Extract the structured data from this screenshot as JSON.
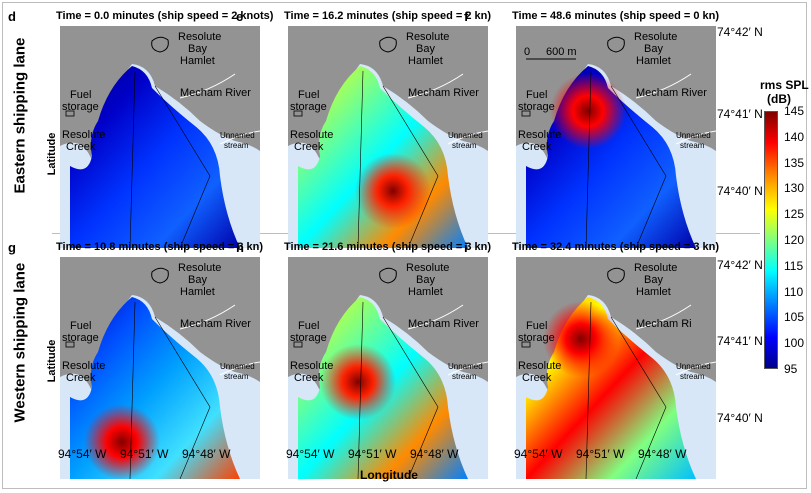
{
  "row_labels": [
    "Eastern shipping lane",
    "Western shipping lane"
  ],
  "ylabel": "Latitude",
  "xlabel": "Longitude",
  "lat_ticks": [
    "74°42′ N",
    "74°41′ N",
    "74°40′ N"
  ],
  "lon_ticks": [
    "94°54′ W",
    "94°51′ W",
    "94°48′ W"
  ],
  "colorbar": {
    "title_line1": "rms SPL",
    "title_line2": "(dB)",
    "ticks": [
      "145",
      "140",
      "135",
      "130",
      "125",
      "120",
      "115",
      "110",
      "105",
      "100",
      "95"
    ],
    "range": [
      95,
      145
    ],
    "colors": [
      "#00008b",
      "#0000ff",
      "#0080ff",
      "#00ffff",
      "#80ff80",
      "#ffff00",
      "#ff8a00",
      "#ff0000",
      "#800000"
    ]
  },
  "place_names": {
    "resolute_bay_1": "Resolute",
    "resolute_bay_2": "Bay",
    "resolute_bay_3": "Hamlet",
    "mecham_river": "Mecham River",
    "mecham_river_truncated": "Mecham Ri",
    "fuel_1": "Fuel",
    "fuel_2": "storage",
    "creek_1": "Resolute",
    "creek_2": "Creek",
    "unnamed_1": "Unnamed",
    "unnamed_2": "stream"
  },
  "scale_bar": {
    "start": "0",
    "end": "600 m"
  },
  "panels": [
    {
      "letter": "d",
      "title": "Time = 0.0 minutes (ship speed = 2 knots)",
      "mecham": "Mecham River",
      "scale": false,
      "dominant": "low"
    },
    {
      "letter": "e",
      "title": "Time = 16.2 minutes (ship speed = 2 kn)",
      "mecham": "Mecham River",
      "scale": false,
      "dominant": "mid"
    },
    {
      "letter": "f",
      "title": "Time = 48.6 minutes (ship speed = 0 kn)",
      "mecham": "Mecham River",
      "scale": true,
      "dominant": "low"
    },
    {
      "letter": "g",
      "title": "Time = 10.8 minutes (ship speed = 3 kn)",
      "mecham": "Mecham River",
      "scale": false,
      "dominant": "low-south-high"
    },
    {
      "letter": "h",
      "title": "Time = 21.6 minutes (ship speed = 3 kn)",
      "mecham": "Mecham River",
      "scale": false,
      "dominant": "mid"
    },
    {
      "letter": "i",
      "title": "Time = 32.4 minutes (ship speed = 3 kn)",
      "mecham": "Mecham Ri",
      "scale": false,
      "dominant": "high"
    }
  ]
}
